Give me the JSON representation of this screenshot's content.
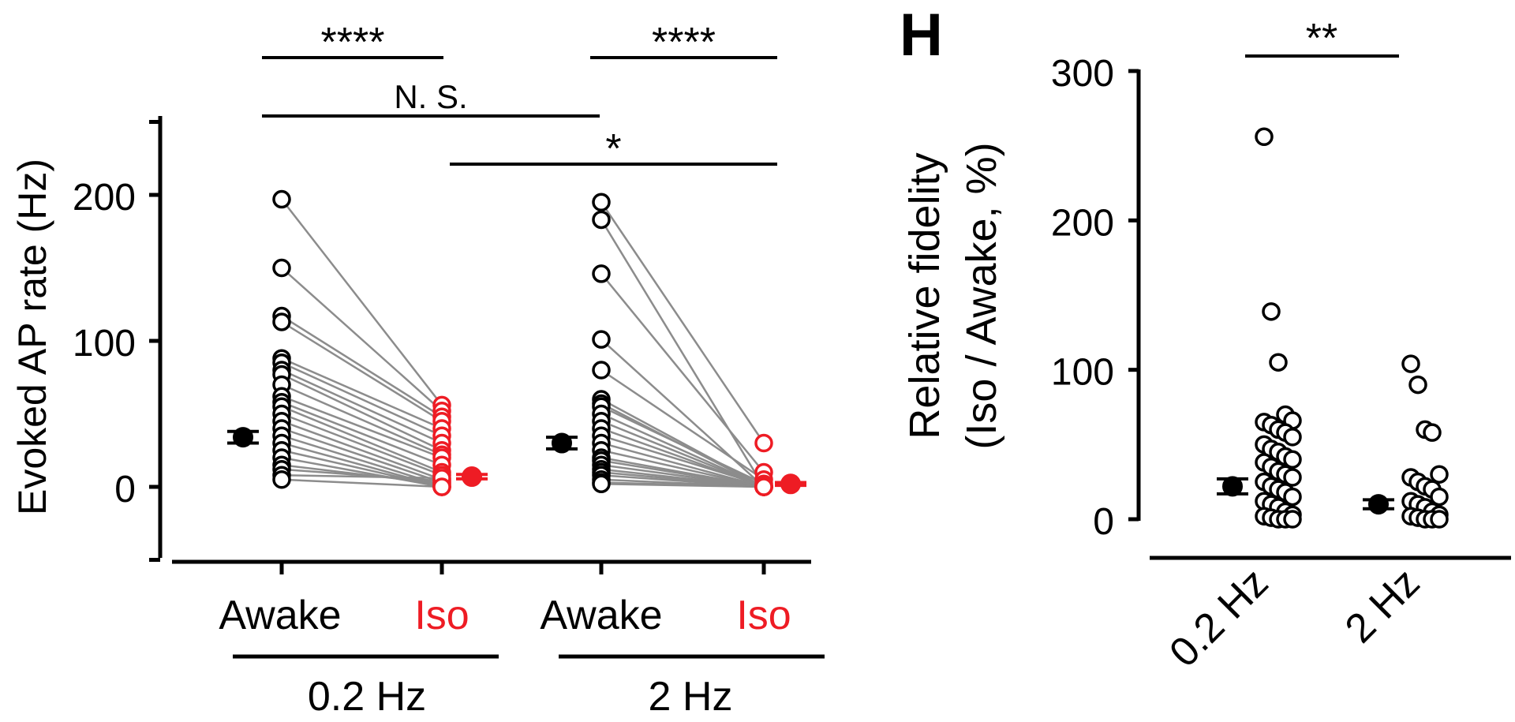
{
  "panel_h_label": "H",
  "colors": {
    "black": "#000000",
    "red": "#ee1c24",
    "gray": "#8c8c8c",
    "white": "#ffffff"
  },
  "chart_data": [
    {
      "type": "scatter",
      "title": "",
      "ylabel": "Evoked AP rate (Hz)",
      "ylim": [
        -50,
        250
      ],
      "yticks": [
        0,
        100,
        200
      ],
      "ytick_labels": [
        "0",
        "100",
        "200"
      ],
      "xtick_labels": [
        "Awake",
        "Iso",
        "Awake",
        "Iso"
      ],
      "group_labels": [
        "0.2 Hz",
        "2 Hz"
      ],
      "groups": [
        {
          "name": "0.2 Hz",
          "awake": [
            197,
            150,
            117,
            113,
            88,
            85,
            80,
            77,
            70,
            62,
            58,
            55,
            50,
            45,
            40,
            35,
            30,
            25,
            20,
            15,
            12,
            8,
            5
          ],
          "iso": [
            56,
            52,
            48,
            45,
            40,
            35,
            30,
            25,
            22,
            20,
            15,
            10,
            8,
            5,
            3,
            1,
            0,
            0,
            0,
            2,
            4,
            6,
            0
          ],
          "awake_mean": 34,
          "awake_sem": 4,
          "iso_mean": 7,
          "iso_sem": 1.5
        },
        {
          "name": "2 Hz",
          "awake": [
            195,
            183,
            146,
            101,
            80,
            60,
            57,
            55,
            50,
            45,
            40,
            35,
            30,
            25,
            20,
            18,
            15,
            12,
            10,
            8,
            5,
            3,
            2
          ],
          "iso": [
            30,
            0,
            10,
            0,
            5,
            0,
            0,
            2,
            0,
            0,
            0,
            1,
            0,
            0,
            0,
            0,
            0,
            0,
            0,
            0,
            0,
            0,
            0
          ],
          "awake_mean": 30,
          "awake_sem": 4,
          "iso_mean": 2,
          "iso_sem": 1
        }
      ],
      "significance": [
        {
          "label": "****",
          "from": 0,
          "to": 1
        },
        {
          "label": "****",
          "from": 2,
          "to": 3
        },
        {
          "label": "N. S.",
          "from": 0,
          "to": 2
        },
        {
          "label": "*",
          "from": 1,
          "to": 3
        }
      ]
    },
    {
      "type": "scatter",
      "title": "",
      "ylabel_line1": "Relative fidelity",
      "ylabel_line2": "(Iso / Awake, %)",
      "ylim": [
        0,
        300
      ],
      "yticks": [
        0,
        100,
        200,
        300
      ],
      "ytick_labels": [
        "0",
        "100",
        "200",
        "300"
      ],
      "categories": [
        "0.2 Hz",
        "2 Hz"
      ],
      "series": [
        {
          "name": "0.2 Hz",
          "values": [
            256,
            139,
            105,
            70,
            66,
            65,
            63,
            60,
            58,
            55,
            50,
            47,
            45,
            42,
            40,
            38,
            35,
            32,
            30,
            28,
            25,
            22,
            20,
            18,
            15,
            12,
            10,
            8,
            5,
            3,
            2,
            1,
            0,
            0,
            0
          ],
          "mean": 22,
          "sem": 5
        },
        {
          "name": "2 Hz",
          "values": [
            104,
            90,
            60,
            58,
            30,
            28,
            25,
            22,
            20,
            15,
            12,
            10,
            8,
            5,
            3,
            2,
            1,
            0,
            0,
            0
          ],
          "mean": 10,
          "sem": 3
        }
      ],
      "significance": [
        {
          "label": "**",
          "from": 0,
          "to": 1
        }
      ]
    }
  ]
}
